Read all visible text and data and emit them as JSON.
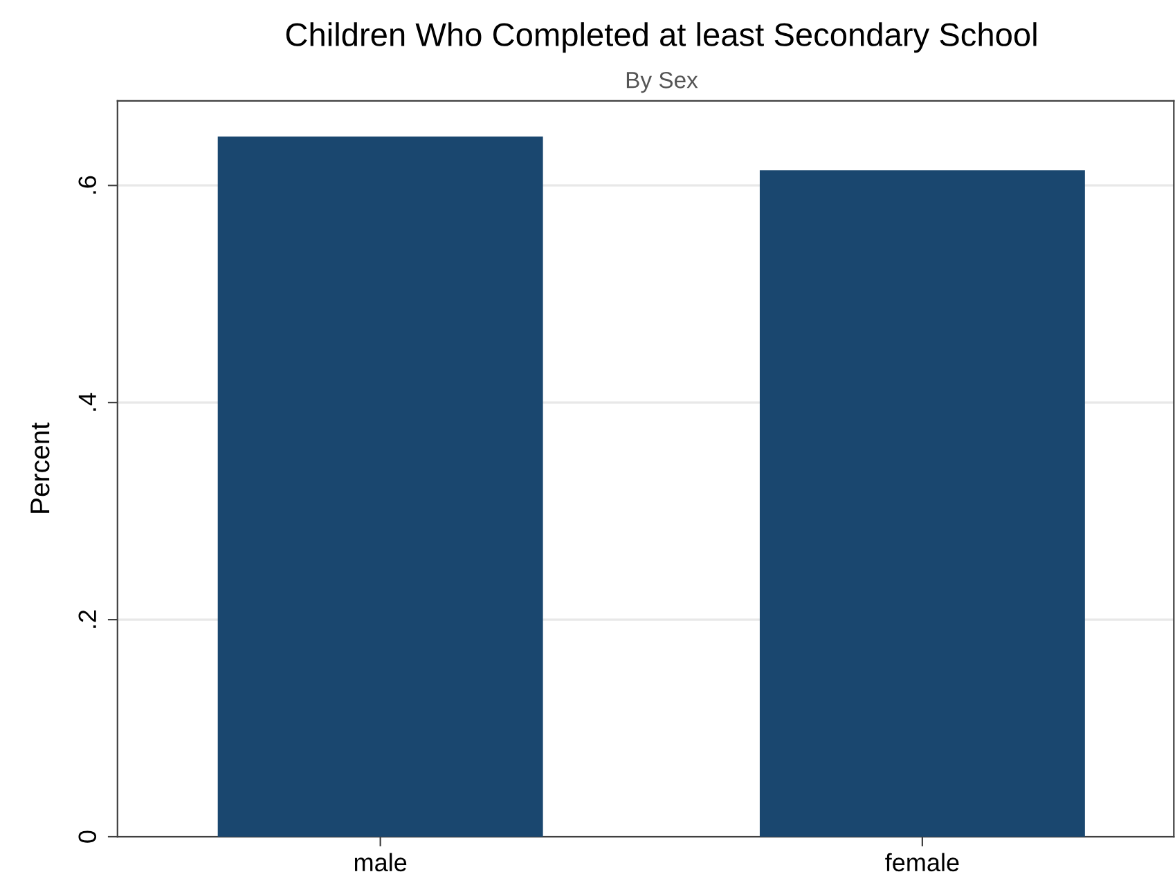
{
  "chart_data": {
    "type": "bar",
    "title": "Children Who Completed at least Secondary School",
    "subtitle": "By Sex",
    "ylabel": "Percent",
    "categories": [
      "male",
      "female"
    ],
    "values": [
      0.645,
      0.614
    ],
    "color": "#1a476f",
    "ylim": [
      0,
      0.678
    ],
    "yticks": [
      {
        "value": 0,
        "label": "0"
      },
      {
        "value": 0.2,
        "label": ".2"
      },
      {
        "value": 0.4,
        "label": ".4"
      },
      {
        "value": 0.6,
        "label": ".6"
      }
    ],
    "grid": "y"
  }
}
